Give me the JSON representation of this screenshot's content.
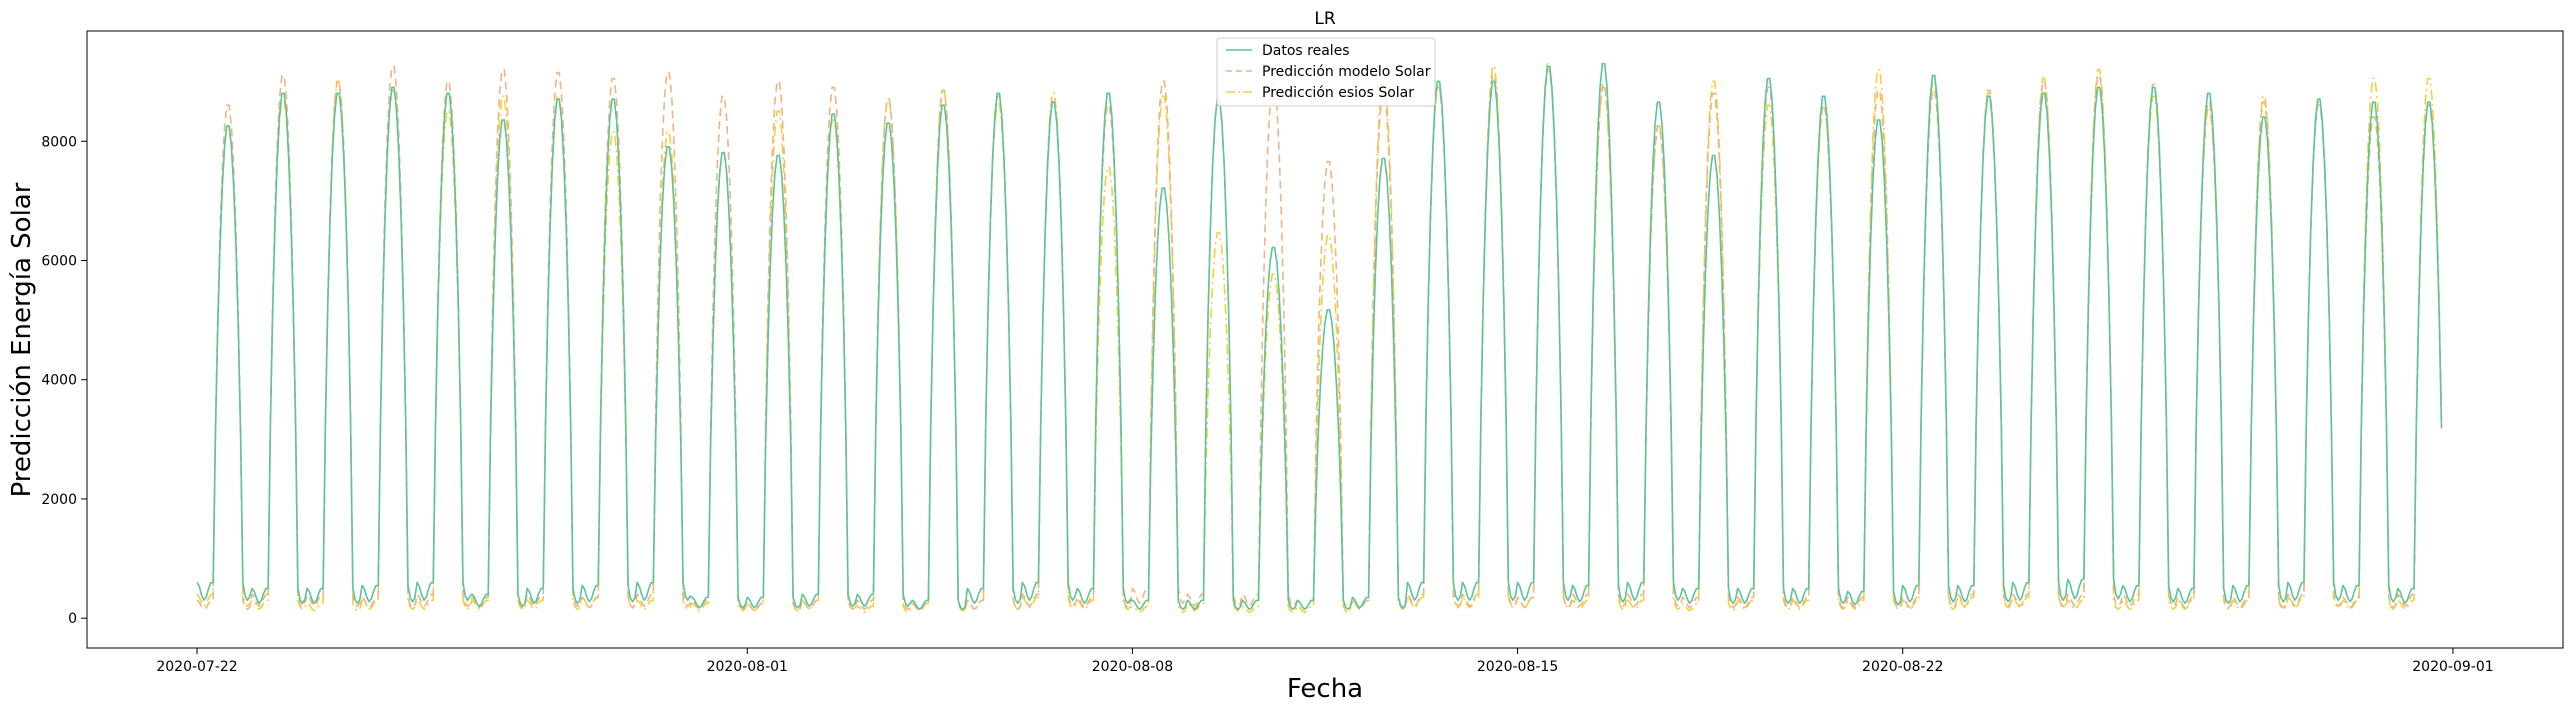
{
  "chart_data": {
    "type": "line",
    "title": "LR",
    "xlabel": "Fecha",
    "ylabel": "Predicción Energía Solar",
    "x_start": "2020-07-22",
    "x_end": "2020-08-31",
    "xlim": [
      "2020-07-20",
      "2020-09-03"
    ],
    "ylim": [
      -500,
      9850
    ],
    "x_ticks": [
      "2020-07-22",
      "2020-08-01",
      "2020-08-08",
      "2020-08-15",
      "2020-08-22",
      "2020-09-01"
    ],
    "y_ticks": [
      0,
      2000,
      4000,
      6000,
      8000
    ],
    "legend_position": "top-center",
    "grid": false,
    "series": [
      {
        "name": "Datos reales",
        "color": "#5cc49a",
        "style": "solid",
        "daily_peaks": [
          8300,
          8850,
          8850,
          8950,
          8850,
          8400,
          8750,
          8750,
          7950,
          7850,
          7800,
          8500,
          8350,
          8650,
          8850,
          8700,
          8850,
          7250,
          8750,
          6250,
          5200,
          7750,
          9050,
          9050,
          9300,
          9350,
          8700,
          7800,
          9100,
          8800,
          8400,
          9150,
          8800,
          8850,
          8950,
          8950,
          8850,
          8450,
          8750,
          8700,
          8700
        ],
        "night_levels": [
          600,
          500,
          500,
          550,
          600,
          400,
          500,
          550,
          600,
          350,
          350,
          400,
          400,
          300,
          500,
          600,
          500,
          300,
          300,
          300,
          300,
          350,
          600,
          600,
          600,
          550,
          600,
          500,
          500,
          500,
          450,
          550,
          550,
          600,
          650,
          550,
          500,
          550,
          600,
          550,
          500
        ]
      },
      {
        "name": "Predicción modelo Solar",
        "color": "#f0b482",
        "style": "dashed",
        "daily_peaks": [
          8650,
          9150,
          9050,
          9300,
          9050,
          9250,
          9200,
          9100,
          9200,
          8800,
          9050,
          8950,
          8750,
          8900,
          8800,
          8750,
          8650,
          9050,
          8750,
          9000,
          7700,
          8850,
          8950,
          9150,
          9250,
          9000,
          8300,
          8850,
          8950,
          8650,
          8900,
          8900,
          8900,
          9050,
          9150,
          9000,
          8700,
          8700,
          8650,
          8450,
          8650
        ],
        "night_levels": [
          300,
          400,
          400,
          350,
          400,
          350,
          400,
          350,
          400,
          300,
          250,
          300,
          300,
          250,
          300,
          400,
          350,
          500,
          400,
          400,
          300,
          300,
          400,
          400,
          350,
          400,
          400,
          350,
          350,
          350,
          350,
          350,
          400,
          400,
          400,
          400,
          350,
          350,
          400,
          350,
          400
        ]
      },
      {
        "name": "Predicción esios Solar",
        "color": "#f6cf3a",
        "style": "dashdot",
        "daily_peaks": [
          8300,
          8750,
          9050,
          8900,
          8550,
          8800,
          8800,
          8200,
          8200,
          7850,
          8550,
          8400,
          8750,
          8900,
          8700,
          8850,
          7600,
          8800,
          6500,
          5800,
          6450,
          9100,
          8950,
          9300,
          9350,
          8950,
          8300,
          9050,
          8650,
          8600,
          9250,
          9050,
          8850,
          9100,
          9250,
          8800,
          8600,
          8800,
          8700,
          9100,
          9100
        ],
        "night_levels": [
          400,
          300,
          250,
          300,
          300,
          300,
          300,
          350,
          300,
          250,
          250,
          300,
          200,
          250,
          300,
          350,
          300,
          200,
          250,
          200,
          200,
          300,
          350,
          350,
          350,
          300,
          300,
          250,
          300,
          300,
          300,
          300,
          350,
          350,
          300,
          300,
          300,
          300,
          350,
          300,
          300
        ]
      }
    ]
  }
}
